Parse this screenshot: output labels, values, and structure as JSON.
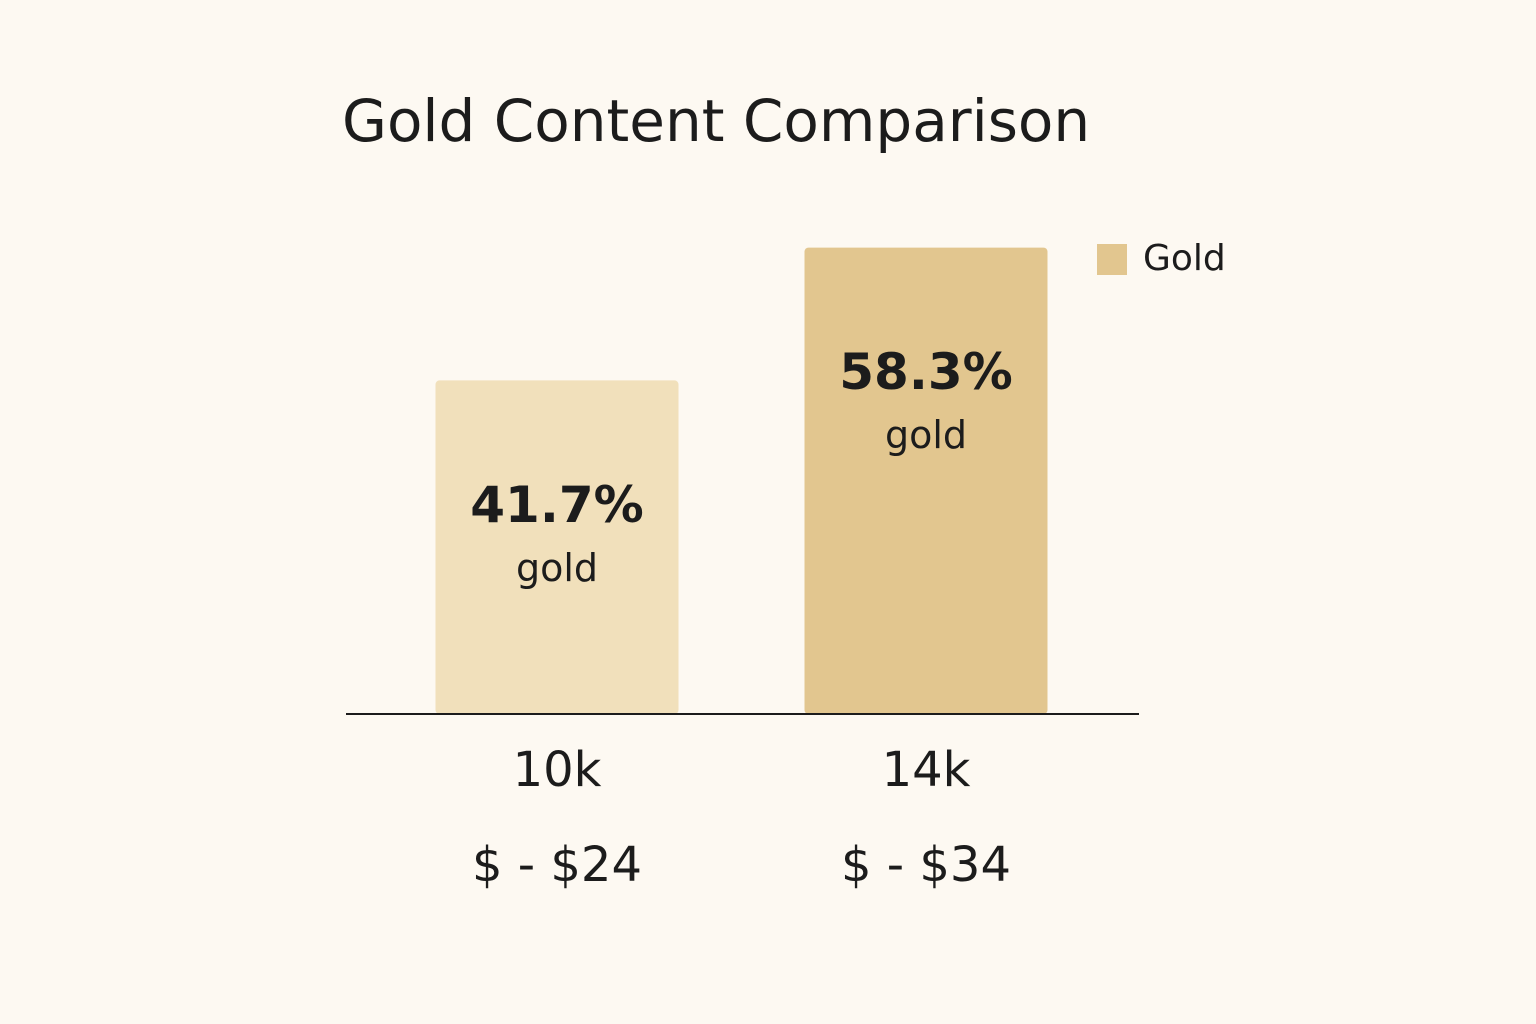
{
  "chart_data": {
    "type": "bar",
    "title": "Gold Content Comparison",
    "categories": [
      "10k",
      "14k"
    ],
    "price_labels": [
      "$ - $24",
      "$ - $34"
    ],
    "bar_label_unit": "gold",
    "series": [
      {
        "name": "Gold",
        "color": "#e2c68f",
        "values": [
          41.7,
          58.3
        ],
        "value_labels": [
          "41.7%",
          "58.3%"
        ],
        "bar_colors": [
          "#f1e0bb",
          "#e2c68f"
        ]
      }
    ],
    "ylim": [
      0,
      65
    ],
    "legend": "top-right"
  }
}
